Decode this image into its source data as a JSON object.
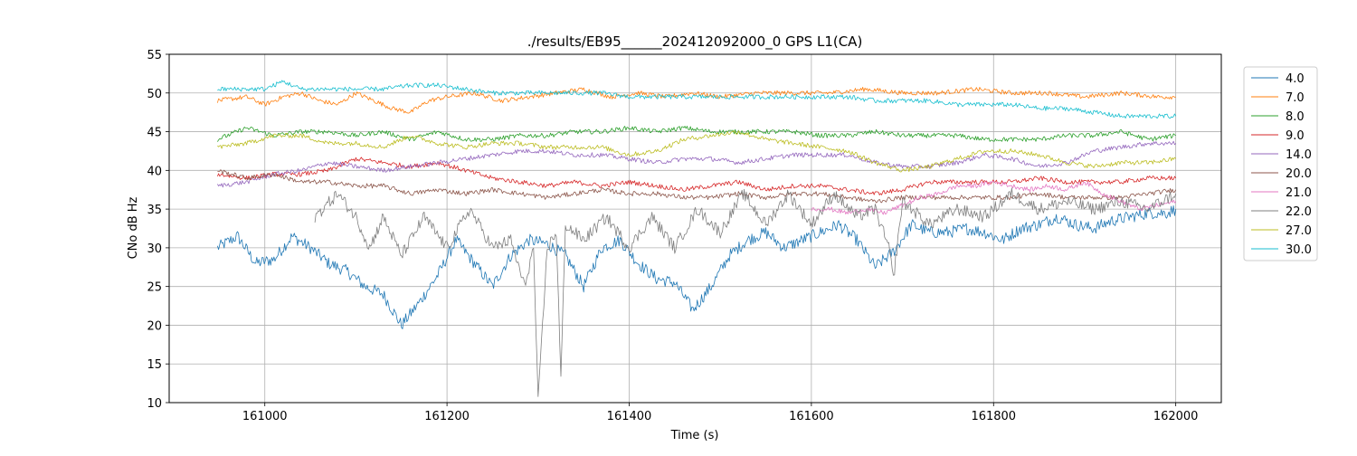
{
  "chart_data": {
    "type": "line",
    "title": "./results/EB95______202412092000_0 GPS L1(CA)",
    "xlabel": "Time (s)",
    "ylabel": "CNo dB Hz",
    "xlim": [
      160895,
      162050
    ],
    "ylim": [
      10,
      55
    ],
    "xticks": [
      161000,
      161200,
      161400,
      161600,
      161800,
      162000
    ],
    "yticks": [
      10,
      15,
      20,
      25,
      30,
      35,
      40,
      45,
      50,
      55
    ],
    "grid": true,
    "legend_position": "upper-right-outside",
    "series": [
      {
        "name": "4.0",
        "color": "#1f77b4",
        "x": [
          160948,
          160970,
          160990,
          161010,
          161030,
          161050,
          161070,
          161090,
          161110,
          161130,
          161150,
          161170,
          161190,
          161210,
          161230,
          161250,
          161270,
          161290,
          161310,
          161330,
          161350,
          161370,
          161390,
          161410,
          161430,
          161450,
          161470,
          161490,
          161510,
          161530,
          161550,
          161570,
          161590,
          161610,
          161630,
          161650,
          161670,
          161690,
          161710,
          161730,
          161750,
          161770,
          161790,
          161810,
          161830,
          161850,
          161870,
          161890,
          161910,
          161930,
          161950,
          161970,
          161990,
          162000
        ],
        "y": [
          30,
          31.5,
          28,
          28.5,
          31.5,
          30,
          28,
          27,
          25,
          24,
          20,
          23,
          26.5,
          31,
          28,
          25,
          29,
          31,
          30.5,
          29,
          25,
          30,
          31,
          28,
          26,
          25.5,
          22,
          25,
          29,
          31,
          32,
          30,
          31,
          32,
          33,
          31,
          27.5,
          29.5,
          33,
          32,
          32,
          32.5,
          32,
          31,
          32.5,
          33,
          34,
          33,
          32.5,
          33.5,
          34,
          34.5,
          34.5,
          35
        ]
      },
      {
        "name": "7.0",
        "color": "#ff7f0e",
        "x": [
          160948,
          160980,
          161000,
          161020,
          161040,
          161060,
          161080,
          161100,
          161120,
          161140,
          161160,
          161180,
          161200,
          161230,
          161260,
          161290,
          161320,
          161350,
          161380,
          161410,
          161440,
          161470,
          161500,
          161540,
          161580,
          161620,
          161660,
          161700,
          161740,
          161780,
          161820,
          161860,
          161900,
          161940,
          161980,
          162000
        ],
        "y": [
          49,
          49.5,
          48.5,
          49.5,
          50,
          49,
          48.5,
          50,
          49,
          48,
          47.5,
          49,
          49.5,
          50,
          49,
          49.5,
          50,
          50.5,
          49.5,
          50,
          49.5,
          50,
          49.5,
          50,
          50,
          50,
          50.5,
          50,
          50,
          50.5,
          50,
          50,
          49.5,
          50,
          49.5,
          49.5
        ]
      },
      {
        "name": "8.0",
        "color": "#2ca02c",
        "x": [
          160948,
          160980,
          161010,
          161040,
          161070,
          161100,
          161130,
          161160,
          161190,
          161220,
          161250,
          161280,
          161310,
          161340,
          161370,
          161400,
          161430,
          161460,
          161490,
          161520,
          161550,
          161580,
          161610,
          161640,
          161670,
          161700,
          161730,
          161760,
          161790,
          161820,
          161850,
          161880,
          161910,
          161940,
          161970,
          162000
        ],
        "y": [
          44,
          45.5,
          44.5,
          45,
          45,
          44.5,
          45,
          44,
          45,
          44,
          44,
          44.5,
          44.5,
          45,
          45,
          45.5,
          45,
          45.5,
          45,
          45,
          45,
          45,
          44.5,
          44.5,
          45,
          44.5,
          44.5,
          44.5,
          44,
          44,
          44,
          44.5,
          44.5,
          45,
          44,
          44.5
        ]
      },
      {
        "name": "9.0",
        "color": "#d62728",
        "x": [
          160948,
          160980,
          161010,
          161040,
          161070,
          161100,
          161130,
          161160,
          161190,
          161220,
          161250,
          161280,
          161310,
          161340,
          161370,
          161400,
          161430,
          161460,
          161490,
          161520,
          161550,
          161580,
          161610,
          161640,
          161670,
          161700,
          161730,
          161760,
          161790,
          161820,
          161850,
          161880,
          161910,
          161940,
          161970,
          162000
        ],
        "y": [
          39.5,
          39,
          39.5,
          39.5,
          40,
          41.5,
          41,
          40.5,
          41,
          40,
          39,
          38.5,
          38,
          38.5,
          38,
          38.5,
          38,
          37.5,
          38,
          38.5,
          37.5,
          38,
          38,
          37.5,
          37,
          37.5,
          38.5,
          38.5,
          38.5,
          38.5,
          39,
          38.5,
          38.5,
          38.5,
          39,
          39
        ]
      },
      {
        "name": "14.0",
        "color": "#9467bd",
        "x": [
          160948,
          160980,
          161010,
          161040,
          161070,
          161100,
          161130,
          161160,
          161190,
          161220,
          161250,
          161280,
          161310,
          161340,
          161370,
          161400,
          161430,
          161460,
          161490,
          161520,
          161550,
          161580,
          161610,
          161640,
          161670,
          161700,
          161730,
          161760,
          161790,
          161820,
          161850,
          161880,
          161910,
          161940,
          161970,
          162000
        ],
        "y": [
          38,
          38.5,
          39.5,
          40,
          41,
          40.5,
          40,
          40.5,
          41,
          41.5,
          42,
          42.5,
          42.5,
          42,
          42,
          41.5,
          41,
          41.5,
          41.5,
          41,
          41.5,
          42,
          42,
          42,
          41,
          40.5,
          40.5,
          41,
          42,
          41.5,
          40.5,
          41,
          42.5,
          43,
          43.5,
          43.5
        ]
      },
      {
        "name": "20.0",
        "color": "#8c564b",
        "x": [
          160948,
          160980,
          161010,
          161040,
          161070,
          161100,
          161130,
          161160,
          161190,
          161220,
          161250,
          161280,
          161310,
          161340,
          161370,
          161400,
          161430,
          161460,
          161490,
          161520,
          161550,
          161580,
          161610,
          161640,
          161670,
          161700,
          161730,
          161760,
          161790,
          161820,
          161850,
          161880,
          161910,
          161940,
          161970,
          162000
        ],
        "y": [
          40,
          39,
          39.5,
          38.5,
          38.5,
          38,
          38,
          37,
          37.5,
          37,
          37.5,
          37,
          36.5,
          37,
          37.5,
          37,
          37,
          36.5,
          36.5,
          37,
          36.5,
          37,
          37,
          36.5,
          36,
          36.5,
          36.5,
          36.5,
          36.5,
          36.5,
          37,
          36.5,
          36.5,
          36.5,
          37,
          37.5
        ]
      },
      {
        "name": "21.0",
        "color": "#e377c2",
        "x": [
          161600,
          161620,
          161640,
          161660,
          161680,
          161700,
          161720,
          161740,
          161760,
          161780,
          161800,
          161820,
          161840,
          161860,
          161880,
          161900,
          161920,
          161940,
          161960,
          161980,
          162000
        ],
        "y": [
          35,
          35,
          34.5,
          35,
          34.5,
          35.5,
          36.5,
          37,
          38,
          38,
          38.5,
          38,
          37.5,
          38,
          37.5,
          38.5,
          37,
          36,
          35,
          35.5,
          36
        ]
      },
      {
        "name": "22.0",
        "color": "#7f7f7f",
        "x": [
          161055,
          161080,
          161100,
          161115,
          161130,
          161150,
          161175,
          161200,
          161225,
          161250,
          161270,
          161285,
          161295,
          161300,
          161310,
          161320,
          161325,
          161330,
          161350,
          161375,
          161400,
          161425,
          161450,
          161475,
          161500,
          161525,
          161550,
          161575,
          161600,
          161625,
          161650,
          161670,
          161685,
          161690,
          161700,
          161730,
          161760,
          161790,
          161820,
          161850,
          161880,
          161910,
          161940,
          161970,
          162000
        ],
        "y": [
          34,
          37,
          34,
          30,
          34,
          29,
          34,
          30,
          35,
          30,
          31,
          25,
          30,
          10,
          30,
          32,
          13,
          33,
          31,
          34,
          30,
          34,
          30,
          35,
          32,
          37,
          33,
          37,
          33,
          37,
          34,
          35,
          30,
          26,
          36,
          33,
          35,
          34,
          37,
          35,
          36,
          35,
          36,
          35,
          37
        ]
      },
      {
        "name": "27.0",
        "color": "#bcbd22",
        "x": [
          160948,
          160980,
          161010,
          161040,
          161070,
          161100,
          161130,
          161160,
          161190,
          161220,
          161250,
          161280,
          161310,
          161340,
          161370,
          161400,
          161430,
          161460,
          161490,
          161520,
          161550,
          161580,
          161610,
          161640,
          161670,
          161700,
          161730,
          161760,
          161790,
          161820,
          161850,
          161880,
          161910,
          161940,
          161970,
          162000
        ],
        "y": [
          43,
          43.5,
          44.5,
          44.5,
          43.5,
          43.5,
          43,
          44.5,
          43.5,
          43,
          43.5,
          43.5,
          43,
          43,
          43,
          42,
          42.5,
          44,
          44.5,
          45,
          44,
          43.5,
          43,
          42.5,
          41,
          40,
          40.5,
          41.5,
          42.5,
          42.5,
          42,
          41,
          40.5,
          41,
          41,
          41.5
        ]
      },
      {
        "name": "30.0",
        "color": "#17becf",
        "x": [
          160948,
          160980,
          161000,
          161020,
          161040,
          161070,
          161100,
          161130,
          161160,
          161190,
          161220,
          161250,
          161280,
          161310,
          161340,
          161370,
          161400,
          161430,
          161460,
          161490,
          161520,
          161550,
          161580,
          161610,
          161640,
          161670,
          161700,
          161730,
          161760,
          161790,
          161820,
          161850,
          161880,
          161910,
          161940,
          161970,
          162000
        ],
        "y": [
          50.5,
          50.5,
          50.5,
          51.5,
          50.5,
          50.5,
          50.5,
          50.5,
          51,
          51,
          50.5,
          50,
          50,
          50,
          50,
          50,
          49.5,
          49.5,
          49.5,
          49.5,
          49.5,
          49.5,
          49.5,
          49.5,
          49.5,
          49,
          49,
          49,
          48.5,
          48.5,
          48.5,
          48,
          48,
          47.5,
          47,
          47,
          47
        ]
      }
    ]
  }
}
